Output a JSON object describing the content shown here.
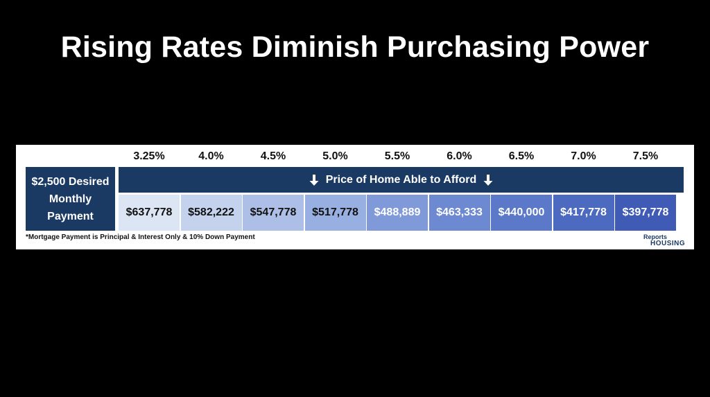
{
  "title": "Rising Rates Diminish Purchasing Power",
  "chart_data": {
    "type": "table",
    "rates": [
      "3.25%",
      "4.0%",
      "4.5%",
      "5.0%",
      "5.5%",
      "6.0%",
      "6.5%",
      "7.0%",
      "7.5%"
    ],
    "row_header_lines": [
      "$2,500 Desired",
      "Monthly",
      "Payment"
    ],
    "banner": "Price of Home Able to Afford",
    "values": [
      "$637,778",
      "$582,222",
      "$547,778",
      "$517,778",
      "$488,889",
      "$463,333",
      "$440,000",
      "$417,778",
      "$397,778"
    ],
    "cell_colors": [
      "#dce5f4",
      "#c5d2ee",
      "#aebfe7",
      "#98afe1",
      "#7f99d9",
      "#6c89d1",
      "#5b79c8",
      "#4c6ac0",
      "#3f5bb5"
    ],
    "text_colors": [
      "#111111",
      "#111111",
      "#111111",
      "#111111",
      "#ffffff",
      "#ffffff",
      "#ffffff",
      "#ffffff",
      "#ffffff"
    ]
  },
  "footnote": "*Mortgage Payment is Principal & Interest Only & 10% Down Payment",
  "logo": {
    "line1": "Reports",
    "line2": "HOUSING"
  },
  "colors": {
    "navy": "#1b3a63",
    "background": "#000000"
  }
}
